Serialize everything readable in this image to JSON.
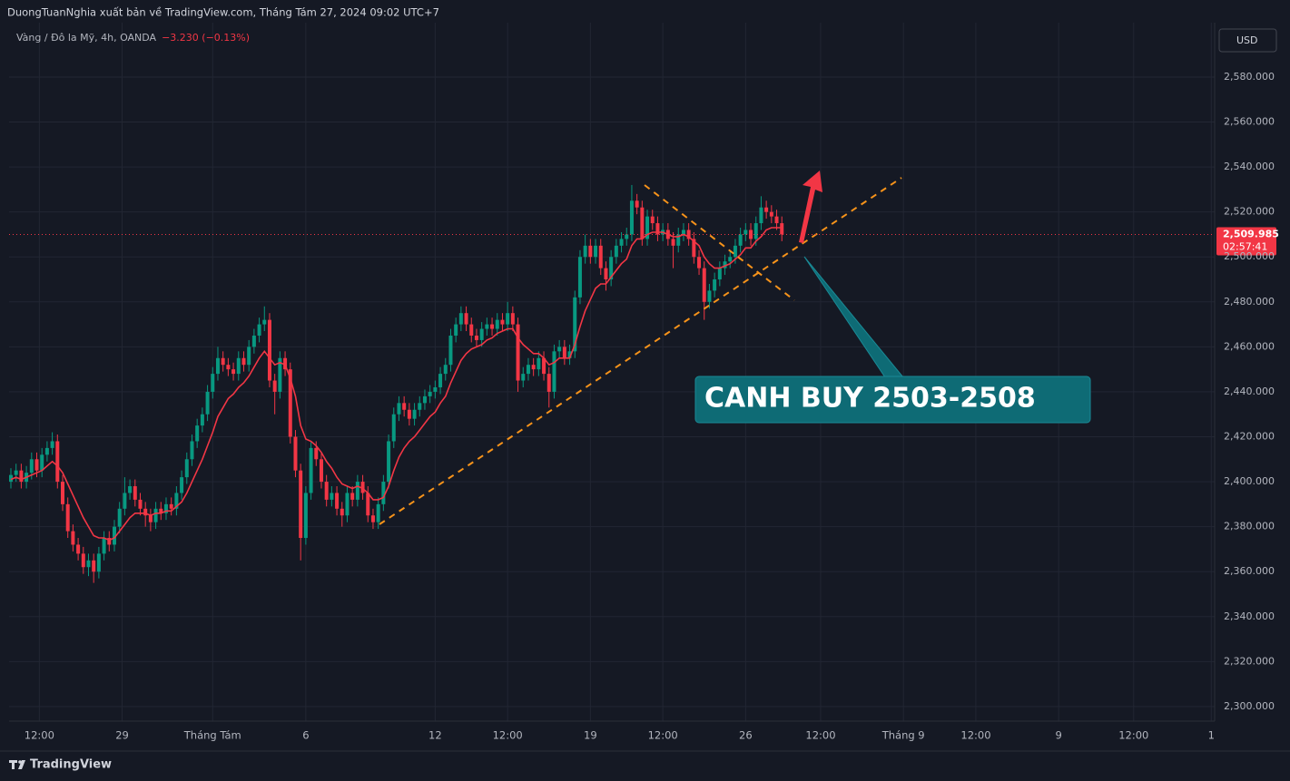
{
  "chart_data": {
    "type": "candlestick",
    "subtitle": "DuongTuanNghia xuất bản về TradingView.com, Tháng Tám 27, 2024 09:02 UTC+7",
    "title": "Vàng / Đô la Mỹ, 4h, OANDA",
    "change": "−3.230 (−0.13%)",
    "currency": "USD",
    "last_price": {
      "value": 2509.985,
      "label": "2,509.985"
    },
    "countdown": "02:57:41",
    "annotation": "CANH BUY 2503-2508",
    "brand": "TradingView",
    "up_color": "#089981",
    "down_color": "#f23645",
    "grid": true,
    "open": [
      2400,
      2403,
      2405,
      2400,
      2404,
      2410,
      2405,
      2412,
      2415,
      2418,
      2400,
      2390,
      2378,
      2372,
      2368,
      2362,
      2365,
      2360,
      2368,
      2375,
      2372,
      2380,
      2388,
      2395,
      2398,
      2392,
      2388,
      2385,
      2382,
      2388,
      2386,
      2390,
      2388,
      2395,
      2402,
      2410,
      2418,
      2425,
      2430,
      2440,
      2448,
      2455,
      2452,
      2450,
      2448,
      2455,
      2452,
      2460,
      2465,
      2470,
      2472,
      2445,
      2440,
      2455,
      2450,
      2420,
      2405,
      2375,
      2395,
      2415,
      2410,
      2400,
      2392,
      2395,
      2388,
      2385,
      2395,
      2392,
      2400,
      2395,
      2385,
      2382,
      2390,
      2400,
      2418,
      2430,
      2435,
      2432,
      2428,
      2432,
      2435,
      2438,
      2440,
      2442,
      2448,
      2452,
      2465,
      2470,
      2475,
      2470,
      2465,
      2463,
      2468,
      2470,
      2468,
      2472,
      2470,
      2475,
      2470,
      2445,
      2448,
      2452,
      2450,
      2455,
      2448,
      2440,
      2458,
      2460,
      2455,
      2458,
      2482,
      2500,
      2505,
      2500,
      2505,
      2495,
      2490,
      2500,
      2505,
      2508,
      2510,
      2525,
      2522,
      2508,
      2518,
      2515,
      2510,
      2512,
      2508,
      2505,
      2510,
      2512,
      2508,
      2500,
      2495,
      2480,
      2485,
      2490,
      2495,
      2498,
      2500,
      2505,
      2510,
      2512,
      2508,
      2515,
      2522,
      2520,
      2518,
      2515
    ],
    "high": [
      2406,
      2408,
      2408,
      2407,
      2413,
      2413,
      2415,
      2418,
      2422,
      2421,
      2403,
      2393,
      2381,
      2375,
      2371,
      2368,
      2368,
      2371,
      2378,
      2378,
      2383,
      2391,
      2402,
      2401,
      2401,
      2395,
      2391,
      2388,
      2391,
      2391,
      2393,
      2393,
      2398,
      2405,
      2413,
      2421,
      2428,
      2433,
      2443,
      2451,
      2460,
      2458,
      2455,
      2453,
      2458,
      2458,
      2463,
      2468,
      2473,
      2478,
      2475,
      2448,
      2458,
      2458,
      2453,
      2423,
      2408,
      2398,
      2418,
      2418,
      2413,
      2403,
      2398,
      2398,
      2391,
      2398,
      2398,
      2403,
      2403,
      2398,
      2388,
      2393,
      2403,
      2421,
      2433,
      2438,
      2438,
      2435,
      2435,
      2438,
      2441,
      2443,
      2445,
      2451,
      2455,
      2468,
      2473,
      2478,
      2478,
      2473,
      2468,
      2471,
      2473,
      2473,
      2475,
      2475,
      2480,
      2478,
      2473,
      2451,
      2455,
      2455,
      2458,
      2458,
      2451,
      2461,
      2463,
      2463,
      2461,
      2485,
      2503,
      2510,
      2508,
      2508,
      2508,
      2498,
      2503,
      2508,
      2511,
      2513,
      2532,
      2528,
      2525,
      2521,
      2521,
      2518,
      2515,
      2515,
      2511,
      2513,
      2515,
      2515,
      2511,
      2503,
      2498,
      2488,
      2493,
      2498,
      2501,
      2503,
      2508,
      2513,
      2515,
      2515,
      2518,
      2527,
      2525,
      2523,
      2521,
      2518
    ],
    "low": [
      2397,
      2400,
      2397,
      2397,
      2401,
      2402,
      2402,
      2409,
      2412,
      2397,
      2387,
      2375,
      2369,
      2365,
      2359,
      2358,
      2355,
      2357,
      2365,
      2369,
      2369,
      2377,
      2385,
      2392,
      2389,
      2385,
      2380,
      2378,
      2379,
      2383,
      2383,
      2385,
      2385,
      2392,
      2399,
      2407,
      2415,
      2422,
      2427,
      2437,
      2445,
      2449,
      2447,
      2445,
      2445,
      2449,
      2449,
      2457,
      2462,
      2467,
      2442,
      2430,
      2437,
      2447,
      2417,
      2402,
      2365,
      2372,
      2392,
      2407,
      2397,
      2389,
      2389,
      2385,
      2380,
      2382,
      2389,
      2389,
      2392,
      2382,
      2379,
      2379,
      2387,
      2397,
      2415,
      2427,
      2429,
      2425,
      2425,
      2429,
      2432,
      2435,
      2437,
      2439,
      2445,
      2449,
      2462,
      2467,
      2467,
      2462,
      2460,
      2460,
      2465,
      2465,
      2465,
      2467,
      2467,
      2467,
      2440,
      2442,
      2445,
      2447,
      2447,
      2445,
      2433,
      2437,
      2455,
      2452,
      2452,
      2455,
      2479,
      2497,
      2497,
      2497,
      2492,
      2485,
      2487,
      2497,
      2502,
      2505,
      2507,
      2519,
      2505,
      2505,
      2512,
      2507,
      2507,
      2505,
      2495,
      2502,
      2507,
      2505,
      2497,
      2492,
      2472,
      2477,
      2482,
      2487,
      2492,
      2495,
      2497,
      2502,
      2507,
      2505,
      2505,
      2512,
      2517,
      2515,
      2512,
      2507
    ],
    "close": [
      2403,
      2405,
      2400,
      2404,
      2410,
      2405,
      2412,
      2415,
      2418,
      2400,
      2390,
      2378,
      2372,
      2368,
      2362,
      2365,
      2360,
      2368,
      2375,
      2372,
      2380,
      2388,
      2395,
      2398,
      2392,
      2388,
      2385,
      2382,
      2388,
      2386,
      2390,
      2388,
      2395,
      2402,
      2410,
      2418,
      2425,
      2430,
      2440,
      2448,
      2455,
      2452,
      2450,
      2448,
      2455,
      2452,
      2460,
      2465,
      2470,
      2472,
      2445,
      2440,
      2455,
      2450,
      2420,
      2405,
      2375,
      2395,
      2415,
      2410,
      2400,
      2392,
      2395,
      2388,
      2385,
      2395,
      2392,
      2400,
      2395,
      2385,
      2382,
      2390,
      2400,
      2418,
      2430,
      2435,
      2432,
      2428,
      2432,
      2435,
      2438,
      2440,
      2442,
      2448,
      2452,
      2465,
      2470,
      2475,
      2470,
      2465,
      2463,
      2468,
      2470,
      2468,
      2472,
      2470,
      2475,
      2470,
      2445,
      2448,
      2452,
      2450,
      2455,
      2448,
      2440,
      2458,
      2460,
      2455,
      2458,
      2482,
      2500,
      2505,
      2500,
      2505,
      2495,
      2490,
      2500,
      2505,
      2508,
      2510,
      2525,
      2522,
      2508,
      2518,
      2515,
      2510,
      2512,
      2508,
      2505,
      2510,
      2512,
      2508,
      2500,
      2495,
      2480,
      2485,
      2490,
      2495,
      2498,
      2500,
      2505,
      2510,
      2512,
      2508,
      2515,
      2522,
      2520,
      2518,
      2515,
      2510
    ],
    "ma": {
      "color": "#f23645",
      "values": [
        2401,
        2402,
        2401,
        2402,
        2403,
        2404,
        2405,
        2407,
        2409,
        2407,
        2404,
        2399,
        2394,
        2389,
        2384,
        2380,
        2376,
        2375,
        2375,
        2374,
        2375,
        2378,
        2381,
        2384,
        2386,
        2386,
        2386,
        2385,
        2386,
        2386,
        2387,
        2387,
        2389,
        2391,
        2395,
        2400,
        2405,
        2410,
        2416,
        2422,
        2429,
        2433,
        2437,
        2439,
        2442,
        2444,
        2447,
        2451,
        2455,
        2458,
        2455,
        2452,
        2453,
        2452,
        2446,
        2438,
        2425,
        2419,
        2418,
        2416,
        2413,
        2409,
        2406,
        2402,
        2399,
        2398,
        2397,
        2398,
        2397,
        2395,
        2392,
        2392,
        2393,
        2398,
        2405,
        2411,
        2415,
        2418,
        2420,
        2423,
        2426,
        2429,
        2431,
        2435,
        2438,
        2444,
        2449,
        2454,
        2457,
        2459,
        2460,
        2461,
        2463,
        2464,
        2466,
        2467,
        2468,
        2468,
        2464,
        2461,
        2459,
        2457,
        2457,
        2455,
        2452,
        2453,
        2455,
        2455,
        2455,
        2461,
        2469,
        2476,
        2481,
        2486,
        2488,
        2488,
        2491,
        2494,
        2497,
        2499,
        2505,
        2508,
        2508,
        2510,
        2511,
        2511,
        2511,
        2510,
        2509,
        2509,
        2510,
        2509,
        2507,
        2505,
        2500,
        2497,
        2495,
        2495,
        2496,
        2497,
        2499,
        2501,
        2504,
        2504,
        2507,
        2509,
        2512,
        2513,
        2513,
        2513
      ]
    },
    "ylim": [
      2293.5,
      2604.2
    ],
    "yticks": [
      {
        "value": 2580,
        "label": "2,580.000"
      },
      {
        "value": 2560,
        "label": "2,560.000"
      },
      {
        "value": 2540,
        "label": "2,540.000"
      },
      {
        "value": 2520,
        "label": "2,520.000"
      },
      {
        "value": 2500,
        "label": "2,500.000"
      },
      {
        "value": 2480,
        "label": "2,480.000"
      },
      {
        "value": 2460,
        "label": "2,460.000"
      },
      {
        "value": 2440,
        "label": "2,440.000"
      },
      {
        "value": 2420,
        "label": "2,420.000"
      },
      {
        "value": 2400,
        "label": "2,400.000"
      },
      {
        "value": 2380,
        "label": "2,380.000"
      },
      {
        "value": 2360,
        "label": "2,360.000"
      },
      {
        "value": 2340,
        "label": "2,340.000"
      },
      {
        "value": 2320,
        "label": "2,320.000"
      },
      {
        "value": 2300,
        "label": "2,300.000"
      }
    ],
    "xlim": [
      -0.35,
      232.65
    ],
    "xticks": [
      {
        "value": 5.5,
        "label": "12:00"
      },
      {
        "value": 21.5,
        "label": "29"
      },
      {
        "value": 39,
        "label": "Tháng Tám"
      },
      {
        "value": 57,
        "label": "6"
      },
      {
        "value": 82,
        "label": "12"
      },
      {
        "value": 96,
        "label": "12:00"
      },
      {
        "value": 112,
        "label": "19"
      },
      {
        "value": 126,
        "label": "12:00"
      },
      {
        "value": 142,
        "label": "26"
      },
      {
        "value": 156.5,
        "label": "12:00"
      },
      {
        "value": 172.5,
        "label": "Tháng 9"
      },
      {
        "value": 186.5,
        "label": "12:00"
      },
      {
        "value": 202.5,
        "label": "9"
      },
      {
        "value": 217,
        "label": "12:00"
      },
      {
        "value": 232,
        "label": "1"
      }
    ]
  }
}
